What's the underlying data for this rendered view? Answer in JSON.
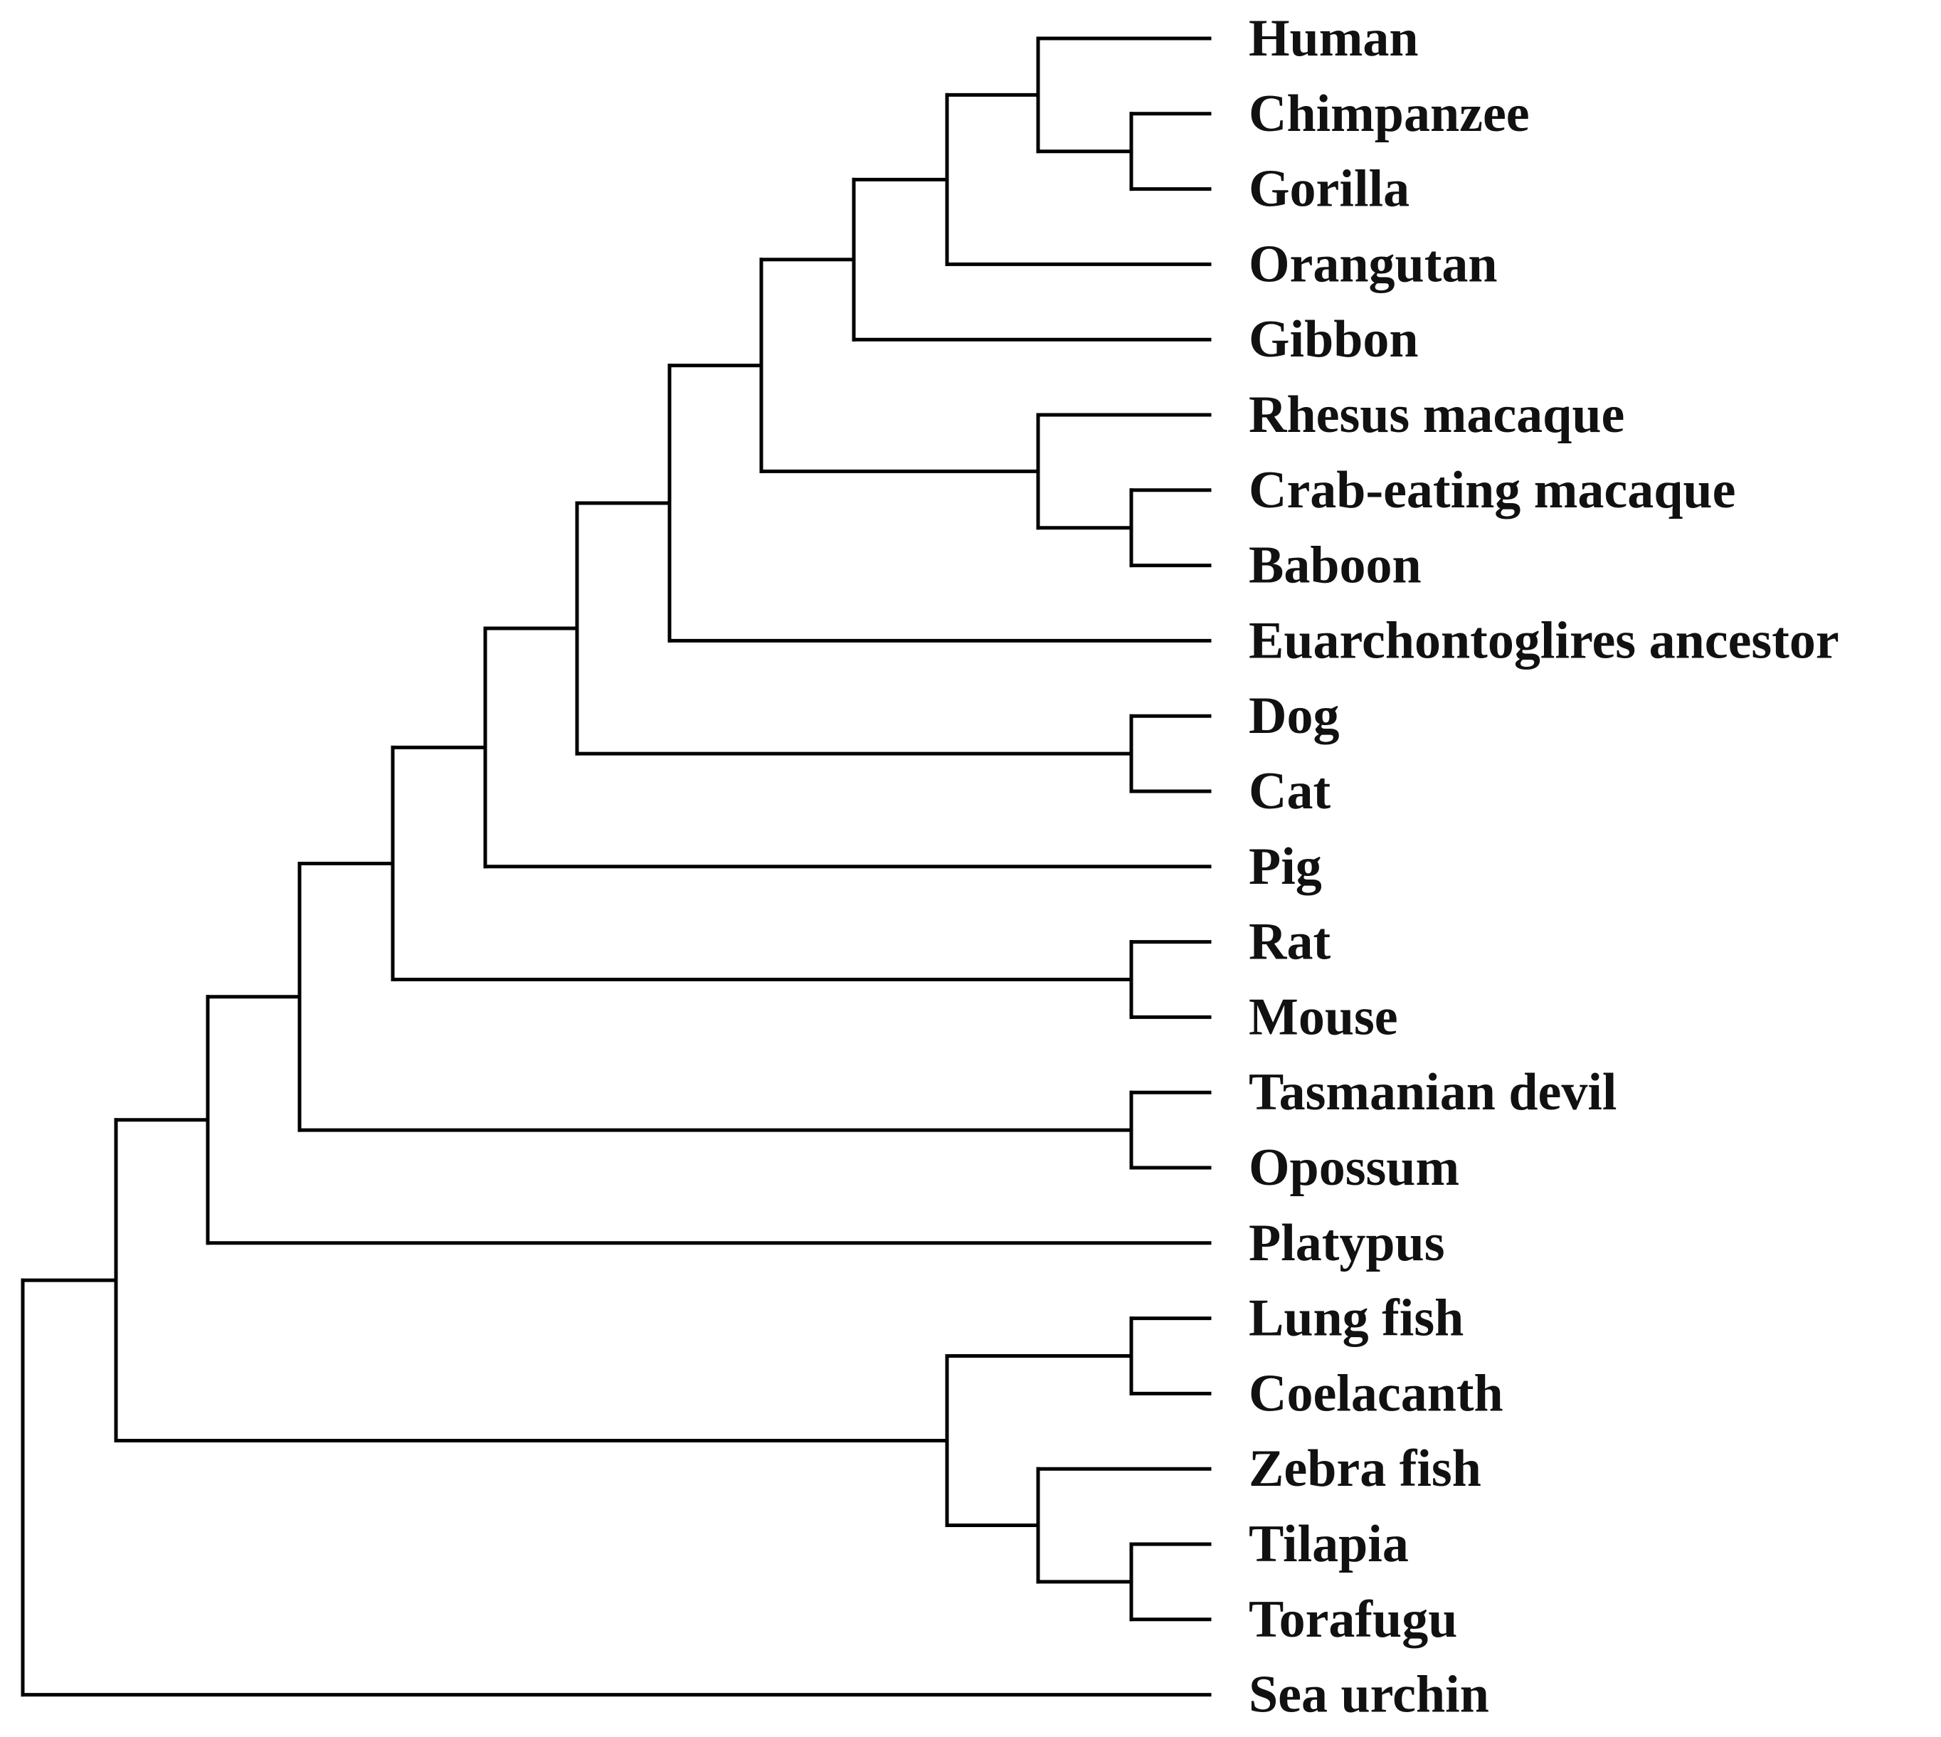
{
  "figure": {
    "type": "rooted cladogram",
    "root": "root"
  },
  "taxa": [
    "Human",
    "Chimpanzee",
    "Gorilla",
    "Orangutan",
    "Gibbon",
    "Rhesus macaque",
    "Crab-eating macaque",
    "Baboon",
    "Euarchontoglires ancestor",
    "Dog",
    "Cat",
    "Pig",
    "Rat",
    "Mouse",
    "Tasmanian devil",
    "Opossum",
    "Platypus",
    "Lung fish",
    "Coelacanth",
    "Zebra fish",
    "Tilapia",
    "Torafugu",
    "Sea urchin"
  ],
  "nodes": {
    "root": {
      "children": [
        "n_vert",
        "Sea urchin"
      ]
    },
    "n_vert": {
      "children": [
        "n_mam",
        "n_fish"
      ]
    },
    "n_mam": {
      "children": [
        "n_therian",
        "Platypus"
      ]
    },
    "n_therian": {
      "children": [
        "n_eut",
        "n_mars"
      ]
    },
    "n_mars": {
      "children": [
        "Tasmanian devil",
        "Opossum"
      ]
    },
    "n_eut": {
      "children": [
        "n_a",
        "n_rod"
      ]
    },
    "n_rod": {
      "children": [
        "Rat",
        "Mouse"
      ]
    },
    "n_a": {
      "children": [
        "n_b",
        "Pig"
      ]
    },
    "n_b": {
      "children": [
        "n_c",
        "n_carn"
      ]
    },
    "n_carn": {
      "children": [
        "Dog",
        "Cat"
      ]
    },
    "n_c": {
      "children": [
        "n_prim",
        "Euarchontoglires ancestor"
      ]
    },
    "n_prim": {
      "children": [
        "n_ape",
        "n_owm"
      ]
    },
    "n_owm": {
      "children": [
        "Rhesus macaque",
        "n_cb"
      ]
    },
    "n_cb": {
      "children": [
        "Crab-eating macaque",
        "Baboon"
      ]
    },
    "n_ape": {
      "children": [
        "n_gapes",
        "Gibbon"
      ]
    },
    "n_gapes": {
      "children": [
        "n_afr",
        "Orangutan"
      ]
    },
    "n_afr": {
      "children": [
        "Human",
        "n_cg"
      ]
    },
    "n_cg": {
      "children": [
        "Chimpanzee",
        "Gorilla"
      ]
    },
    "n_fish": {
      "children": [
        "n_sarc",
        "n_tel"
      ]
    },
    "n_sarc": {
      "children": [
        "Lung fish",
        "Coelacanth"
      ]
    },
    "n_tel": {
      "children": [
        "Zebra fish",
        "n_tt"
      ]
    },
    "n_tt": {
      "children": [
        "Tilapia",
        "Torafugu"
      ]
    }
  }
}
